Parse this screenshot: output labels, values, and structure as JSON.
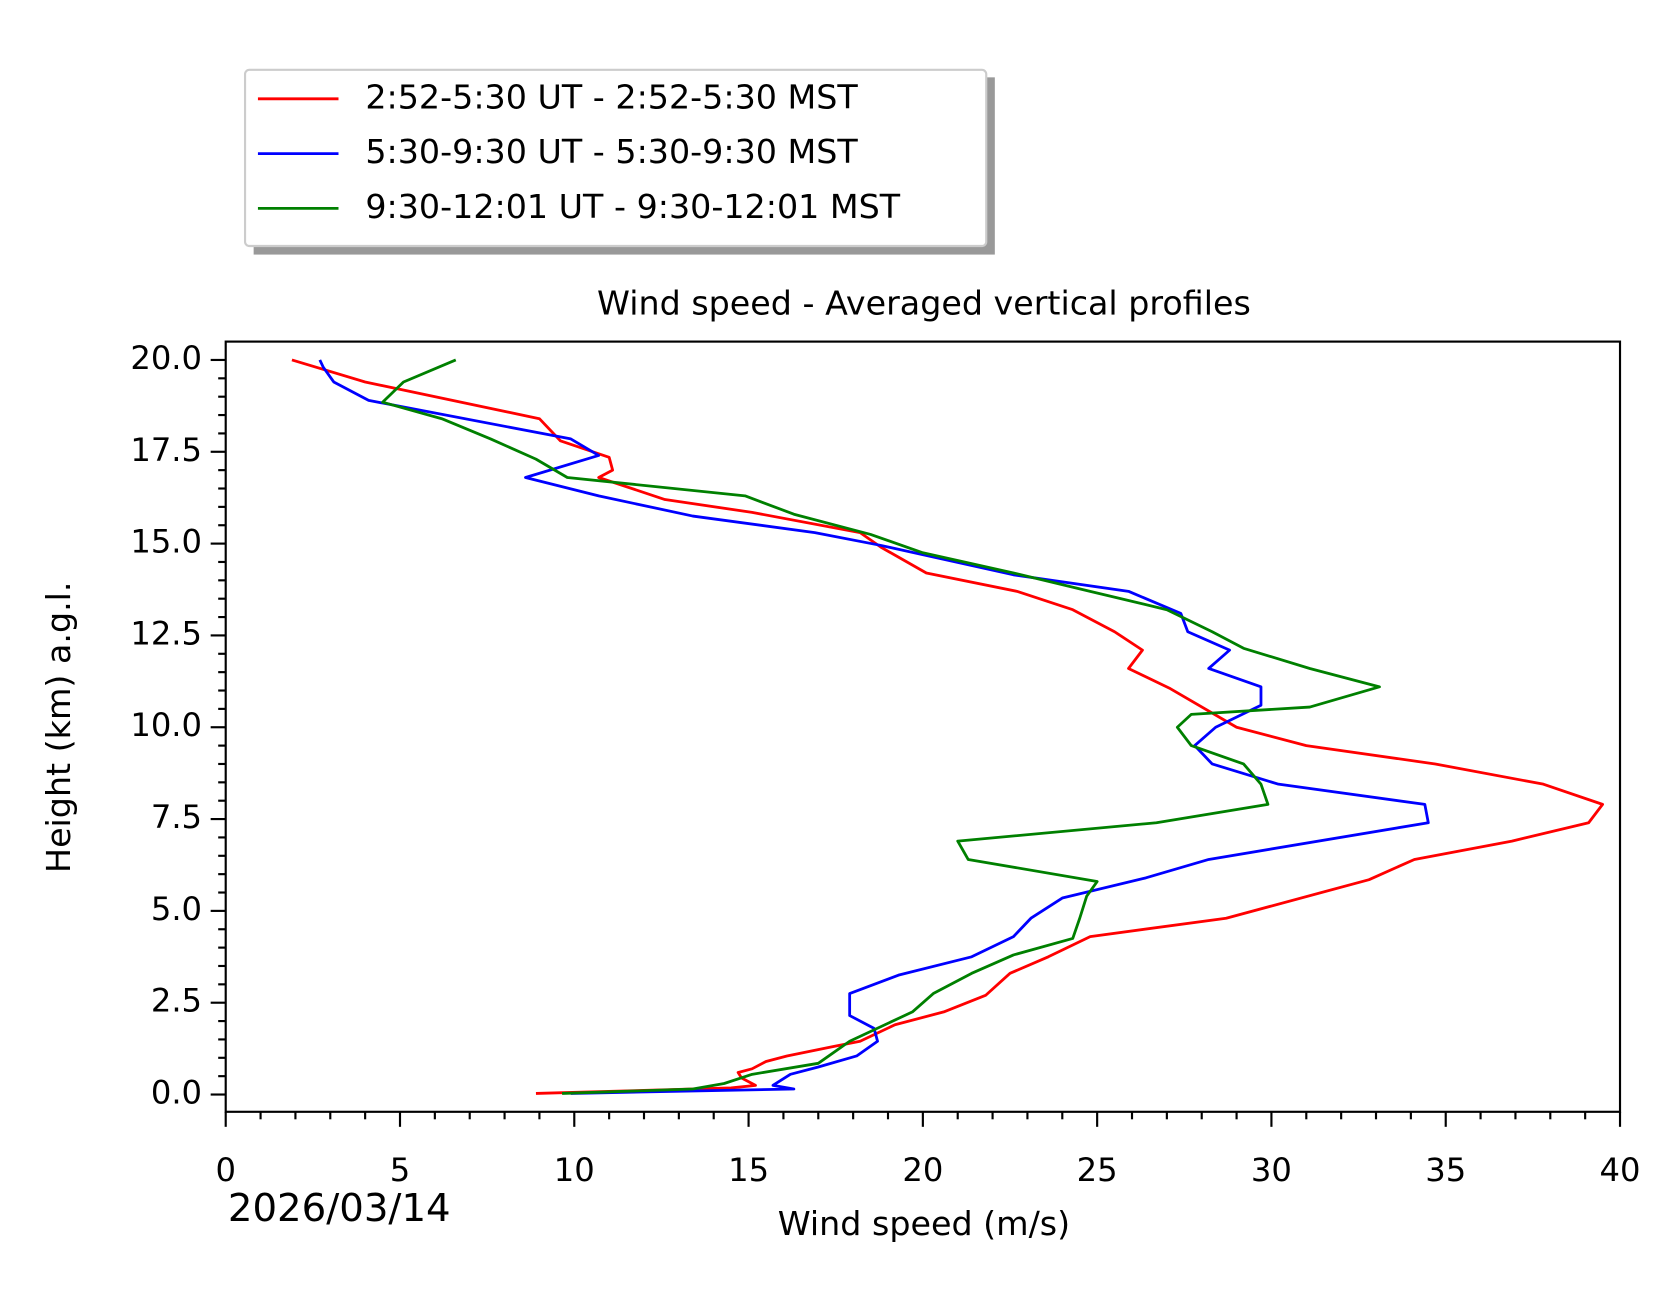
{
  "chart_data": {
    "type": "line",
    "title": "Wind speed - Averaged vertical profiles",
    "xlabel": "Wind speed (m/s)",
    "ylabel": "Height (km) a.g.l.",
    "date": "2026/03/14",
    "xlim": [
      0,
      40
    ],
    "xticks": [
      0,
      5,
      10,
      15,
      20,
      25,
      30,
      35,
      40
    ],
    "xminorticks": [
      1,
      2,
      3,
      4,
      6,
      7,
      8,
      9,
      11,
      12,
      13,
      14,
      16,
      17,
      18,
      19,
      21,
      22,
      23,
      24,
      26,
      27,
      28,
      29,
      31,
      32,
      33,
      34,
      36,
      37,
      38,
      39
    ],
    "ylim": [
      -0.47,
      20.5
    ],
    "yticks": [
      {
        "value": 0,
        "label": "0.0"
      },
      2.5,
      {
        "value": 5,
        "label": "5.0"
      },
      7.5,
      {
        "value": 10,
        "label": "10.0"
      },
      12.5,
      {
        "value": 15,
        "label": "15.0"
      },
      17.5,
      {
        "value": 20,
        "label": "20.0"
      }
    ],
    "yminorticks": [
      0.5,
      1,
      1.5,
      2,
      3,
      3.5,
      4,
      4.5,
      5.5,
      6,
      6.5,
      7,
      8,
      8.5,
      9,
      9.5,
      10.5,
      11,
      11.5,
      12,
      13,
      13.5,
      14,
      14.5,
      15.5,
      16,
      16.5,
      17,
      18,
      18.5,
      19,
      19.5
    ],
    "series": [
      {
        "name": "2:52-5:30 UT - 2:52-5:30 MST",
        "color": "#ff0000",
        "x": [
          8.9,
          14.5,
          15.2,
          14.8,
          14.7,
          15.1,
          15.5,
          16.1,
          17.4,
          18.2,
          19.2,
          20.6,
          21.8,
          22.5,
          23.6,
          24.8,
          28.7,
          32.8,
          34.1,
          36.9,
          39.1,
          39.5,
          37.8,
          34.7,
          31.0,
          29.0,
          27.1,
          25.9,
          26.3,
          25.5,
          24.3,
          22.7,
          20.1,
          18.8,
          18.2,
          15.1,
          12.6,
          10.7,
          11.1,
          11.0,
          9.6,
          9.0,
          4.0,
          1.9
        ],
        "y": [
          0.03,
          0.18,
          0.25,
          0.45,
          0.6,
          0.7,
          0.9,
          1.05,
          1.3,
          1.45,
          1.9,
          2.25,
          2.7,
          3.3,
          3.75,
          4.3,
          4.8,
          5.85,
          6.4,
          6.9,
          7.4,
          7.9,
          8.45,
          9.0,
          9.5,
          10.0,
          11.05,
          11.6,
          12.1,
          12.6,
          13.2,
          13.7,
          14.2,
          14.9,
          15.3,
          15.85,
          16.2,
          16.8,
          17.0,
          17.35,
          17.8,
          18.4,
          19.4,
          20.0
        ]
      },
      {
        "name": "5:30-9:30 UT - 5:30-9:30 MST",
        "color": "#0000ff",
        "x": [
          9.9,
          16.3,
          15.7,
          16.2,
          17.0,
          18.1,
          18.7,
          18.6,
          17.9,
          17.9,
          19.3,
          21.4,
          22.6,
          23.1,
          24.0,
          26.4,
          28.2,
          34.5,
          34.4,
          30.2,
          28.3,
          27.8,
          28.4,
          29.7,
          29.7,
          28.2,
          28.8,
          27.6,
          27.4,
          25.9,
          22.6,
          18.8,
          16.9,
          13.4,
          10.7,
          8.6,
          10.7,
          9.9,
          4.1,
          3.1,
          2.8,
          2.7
        ],
        "y": [
          0.03,
          0.15,
          0.25,
          0.55,
          0.75,
          1.05,
          1.45,
          1.8,
          2.15,
          2.75,
          3.25,
          3.75,
          4.3,
          4.8,
          5.35,
          5.9,
          6.4,
          7.4,
          7.9,
          8.45,
          9.0,
          9.5,
          10.0,
          10.6,
          11.1,
          11.6,
          12.1,
          12.6,
          13.1,
          13.7,
          14.15,
          14.95,
          15.3,
          15.75,
          16.3,
          16.8,
          17.4,
          17.85,
          18.9,
          19.4,
          19.8,
          20.0
        ]
      },
      {
        "name": "9:30-12:01 UT - 9:30-12:01 MST",
        "color": "#008000",
        "x": [
          9.65,
          13.4,
          14.3,
          15.1,
          17.0,
          17.9,
          19.7,
          20.3,
          21.4,
          22.6,
          24.3,
          24.5,
          24.7,
          25.0,
          21.3,
          21.0,
          26.7,
          29.9,
          29.7,
          29.2,
          27.7,
          27.3,
          27.7,
          31.1,
          33.1,
          31.1,
          29.2,
          28.3,
          27.0,
          24.8,
          22.6,
          20.0,
          18.5,
          16.3,
          14.9,
          9.8,
          8.9,
          7.6,
          6.2,
          4.5,
          5.1,
          6.6
        ],
        "y": [
          0.03,
          0.15,
          0.3,
          0.55,
          0.85,
          1.45,
          2.25,
          2.75,
          3.3,
          3.8,
          4.25,
          4.8,
          5.4,
          5.8,
          6.4,
          6.9,
          7.4,
          7.9,
          8.45,
          9.0,
          9.5,
          10.0,
          10.35,
          10.55,
          11.1,
          11.6,
          12.15,
          12.6,
          13.2,
          13.7,
          14.2,
          14.75,
          15.25,
          15.8,
          16.3,
          16.8,
          17.3,
          17.85,
          18.4,
          18.85,
          19.4,
          20.0
        ]
      }
    ]
  }
}
